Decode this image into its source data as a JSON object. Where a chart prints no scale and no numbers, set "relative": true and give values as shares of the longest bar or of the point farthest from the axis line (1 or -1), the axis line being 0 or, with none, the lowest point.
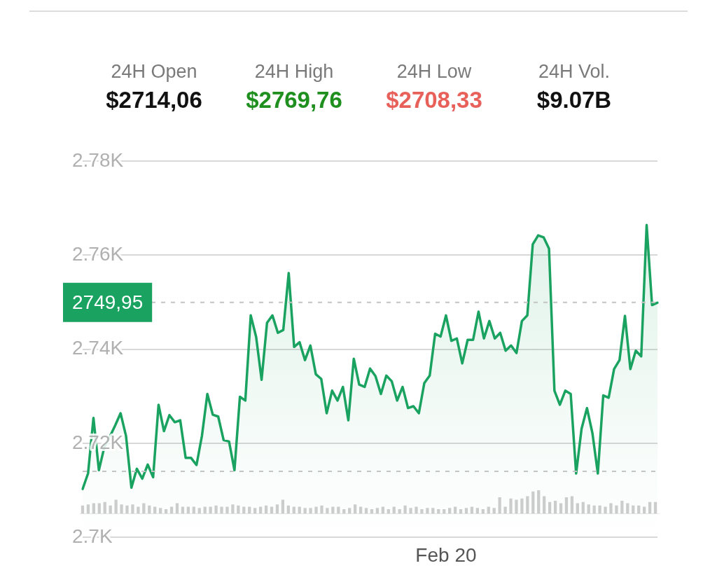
{
  "chart_data": [
    {
      "type": "area",
      "annotations": [
        "24H Open",
        "$2714,06",
        "24H High",
        "$2769,76",
        "24H Low",
        "$2708,33",
        "24H Vol.",
        "$9.07B"
      ],
      "categories": [
        null,
        null,
        null,
        null,
        null,
        null,
        null,
        null,
        null,
        null,
        null,
        null,
        null,
        null,
        null,
        null,
        null,
        null,
        null,
        null,
        null,
        null,
        null,
        null,
        null,
        null,
        null,
        null,
        null,
        null,
        null,
        null,
        null,
        null,
        null,
        null,
        null,
        null,
        null,
        null,
        null,
        null,
        null,
        null,
        null,
        null,
        null,
        null,
        null,
        null,
        null,
        null,
        null,
        null,
        null,
        null,
        null,
        null,
        null,
        null,
        null,
        null,
        null,
        null,
        null,
        null,
        null,
        "Feb 20",
        null,
        null,
        null,
        null,
        null,
        null,
        null,
        null,
        null,
        null,
        null,
        null,
        null,
        null,
        null,
        null,
        null,
        null,
        null,
        null,
        null,
        null,
        null,
        null,
        null,
        null,
        null,
        null,
        null,
        null,
        null,
        null,
        null,
        null,
        null,
        null,
        null,
        null,
        null
      ],
      "series": [
        {
          "color": "#1aa260",
          "values": [
            2710.3,
            2713.6,
            2725.4,
            2714.3,
            2719.2,
            2721.4,
            2723.8,
            2726.4,
            2721.6,
            2710.6,
            2714.6,
            2712.5,
            2715.5,
            2712.8,
            2728.2,
            2722.6,
            2726.0,
            2724.5,
            2724.9,
            2716.9,
            2716.9,
            2715.4,
            2721.6,
            2730.5,
            2726.1,
            2725.7,
            2720.7,
            2720.4,
            2714.3,
            2729.9,
            2729.1,
            2747.2,
            2742.6,
            2733.5,
            2745.6,
            2747.2,
            2743.5,
            2744.1,
            2756.2,
            2740.5,
            2741.5,
            2737.7,
            2740.8,
            2734.7,
            2733.7,
            2726.4,
            2731.2,
            2729.1,
            2732.0,
            2724.9,
            2738.0,
            2732.5,
            2732.0,
            2735.9,
            2734.3,
            2730.5,
            2734.4,
            2733.2,
            2729.1,
            2732.0,
            2727.5,
            2727.9,
            2726.4,
            2732.8,
            2734.4,
            2743.3,
            2742.7,
            2747.2,
            2741.8,
            2742.3,
            2737.0,
            2742.0,
            2742.0,
            2748.0,
            2742.3,
            2746.0,
            2742.3,
            2743.5,
            2739.7,
            2740.8,
            2739.2,
            2746.0,
            2747.2,
            2762.3,
            2764.2,
            2763.8,
            2761.4,
            2731.2,
            2728.2,
            2731.2,
            2730.5,
            2713.6,
            2723.1,
            2727.5,
            2722.2,
            2713.6,
            2730.2,
            2729.7,
            2735.8,
            2737.7,
            2747.1,
            2735.8,
            2739.7,
            2738.5,
            2766.4,
            2749.4,
            2749.9
          ]
        }
      ],
      "ylim": [
        2700,
        2780
      ],
      "yticks": [
        {
          "value": 2700,
          "label": "2.7K"
        },
        {
          "value": 2720,
          "label": "2.72K"
        },
        {
          "value": 2740,
          "label": "2.74K"
        },
        {
          "value": 2760,
          "label": "2.76K"
        },
        {
          "value": 2780,
          "label": "2.78K"
        }
      ],
      "grid": "y",
      "ref_lines": [
        {
          "axis": "y",
          "value": 2749.95,
          "label": "2749,95",
          "color": "#c4c4c4",
          "line_style": "dashed"
        },
        {
          "axis": "y",
          "value": 2714.06,
          "color": "#c4c4c4",
          "line_style": "dashed"
        }
      ]
    },
    {
      "type": "bar",
      "relative": true,
      "color": "#cccccc",
      "categories": [
        null,
        null,
        null,
        null,
        null,
        null,
        null,
        null,
        null,
        null,
        null,
        null,
        null,
        null,
        null,
        null,
        null,
        null,
        null,
        null,
        null,
        null,
        null,
        null,
        null,
        null,
        null,
        null,
        null,
        null,
        null,
        null,
        null,
        null,
        null,
        null,
        null,
        null,
        null,
        null,
        null,
        null,
        null,
        null,
        null,
        null,
        null,
        null,
        null,
        null,
        null,
        null,
        null,
        null,
        null,
        null,
        null,
        null,
        null,
        null,
        null,
        null,
        null,
        null,
        null,
        null,
        null,
        null,
        null,
        null,
        null,
        null,
        null,
        null,
        null,
        null,
        null,
        null,
        null,
        null,
        null,
        null,
        null,
        null,
        null,
        null,
        null,
        null,
        null,
        null,
        null,
        null,
        null,
        null,
        null,
        null,
        null,
        null,
        null,
        null,
        null,
        null,
        null,
        null
      ],
      "values": [
        0.35,
        0.4,
        0.45,
        0.45,
        0.5,
        0.35,
        0.6,
        0.4,
        0.35,
        0.4,
        0.3,
        0.45,
        0.35,
        0.3,
        0.25,
        0.2,
        0.3,
        0.45,
        0.3,
        0.3,
        0.3,
        0.25,
        0.3,
        0.3,
        0.35,
        0.3,
        0.3,
        0.4,
        0.35,
        0.3,
        0.3,
        0.25,
        0.3,
        0.35,
        0.3,
        0.4,
        0.6,
        0.35,
        0.3,
        0.3,
        0.25,
        0.25,
        0.3,
        0.35,
        0.25,
        0.3,
        0.3,
        0.2,
        0.25,
        0.4,
        0.3,
        0.25,
        0.2,
        0.25,
        0.3,
        0.2,
        0.3,
        0.2,
        0.35,
        0.25,
        0.3,
        0.2,
        0.25,
        0.25,
        0.2,
        0.2,
        0.25,
        0.3,
        0.2,
        0.25,
        0.3,
        0.25,
        0.2,
        0.3,
        0.25,
        0.7,
        0.3,
        0.65,
        0.6,
        0.65,
        0.75,
        0.95,
        1,
        0.75,
        0.5,
        0.55,
        0.45,
        0.7,
        0.75,
        0.45,
        0.5,
        0.4,
        0.35,
        0.35,
        0.3,
        0.45,
        0.35,
        0.55,
        0.45,
        0.35,
        0.35,
        0.3,
        0.5,
        0.5
      ]
    }
  ]
}
